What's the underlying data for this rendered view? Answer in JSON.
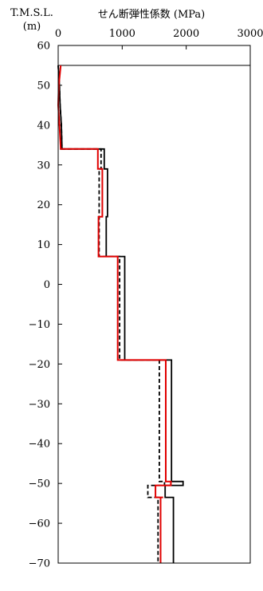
{
  "chart_data": {
    "type": "line",
    "title": "",
    "xlabel": "せん断弾性係数 (MPa)",
    "ylabel_line1": "T.M.S.L.",
    "ylabel_line2": "(m)",
    "xlim": [
      0,
      3000
    ],
    "ylim": [
      -70,
      60
    ],
    "xticks": [
      "0",
      "1000",
      "2000",
      "3000"
    ],
    "yticks": [
      "60",
      "50",
      "40",
      "30",
      "20",
      "10",
      "0",
      "-10",
      "-20",
      "-30",
      "-40",
      "-50",
      "-60",
      "-70"
    ],
    "grid": false,
    "reference_lines": [
      {
        "orientation": "horizontal",
        "y": 55
      }
    ],
    "series": [
      {
        "style": "solid",
        "color": "#000000",
        "x": [
          0,
          0,
          20,
          30,
          50,
          60,
          50,
          40,
          30,
          30,
          720,
          720,
          770,
          770,
          750,
          750,
          1040,
          1040,
          1770,
          1770,
          1950,
          1950,
          1670,
          1670,
          1680,
          1680,
          1800,
          1800
        ],
        "y": [
          55,
          55,
          50,
          45,
          40,
          34,
          34,
          34,
          34,
          34,
          34,
          29,
          29,
          17,
          17,
          7,
          7,
          -19,
          -19,
          -49.5,
          -49.5,
          -50.5,
          -50.5,
          -53.5,
          -53.5,
          -53.5,
          -53.5,
          -70
        ]
      },
      {
        "style": "dashed",
        "color": "#000000",
        "x": [
          0,
          0,
          20,
          30,
          50,
          60,
          670,
          670,
          640,
          640,
          960,
          960,
          1580,
          1580,
          1660,
          1660,
          1400,
          1400,
          1560,
          1560
        ],
        "y": [
          55,
          55,
          50,
          45,
          40,
          34,
          34,
          29,
          29,
          7,
          7,
          -19,
          -19,
          -49.5,
          -49.5,
          -50.5,
          -50.5,
          -53.5,
          -53.5,
          -70
        ]
      },
      {
        "style": "solid",
        "color": "#e00000",
        "x": [
          40,
          10,
          0,
          20,
          40,
          620,
          620,
          690,
          690,
          630,
          630,
          930,
          930,
          1680,
          1680,
          1760,
          1760,
          1520,
          1520,
          1640,
          1640,
          1600,
          1600
        ],
        "y": [
          55,
          50,
          45,
          40,
          34,
          34,
          29,
          29,
          17,
          17,
          7,
          7,
          -19,
          -19,
          -49.5,
          -49.5,
          -50.5,
          -50.5,
          -53.5,
          -53.5,
          -53.5,
          -53.5,
          -70
        ]
      }
    ]
  }
}
